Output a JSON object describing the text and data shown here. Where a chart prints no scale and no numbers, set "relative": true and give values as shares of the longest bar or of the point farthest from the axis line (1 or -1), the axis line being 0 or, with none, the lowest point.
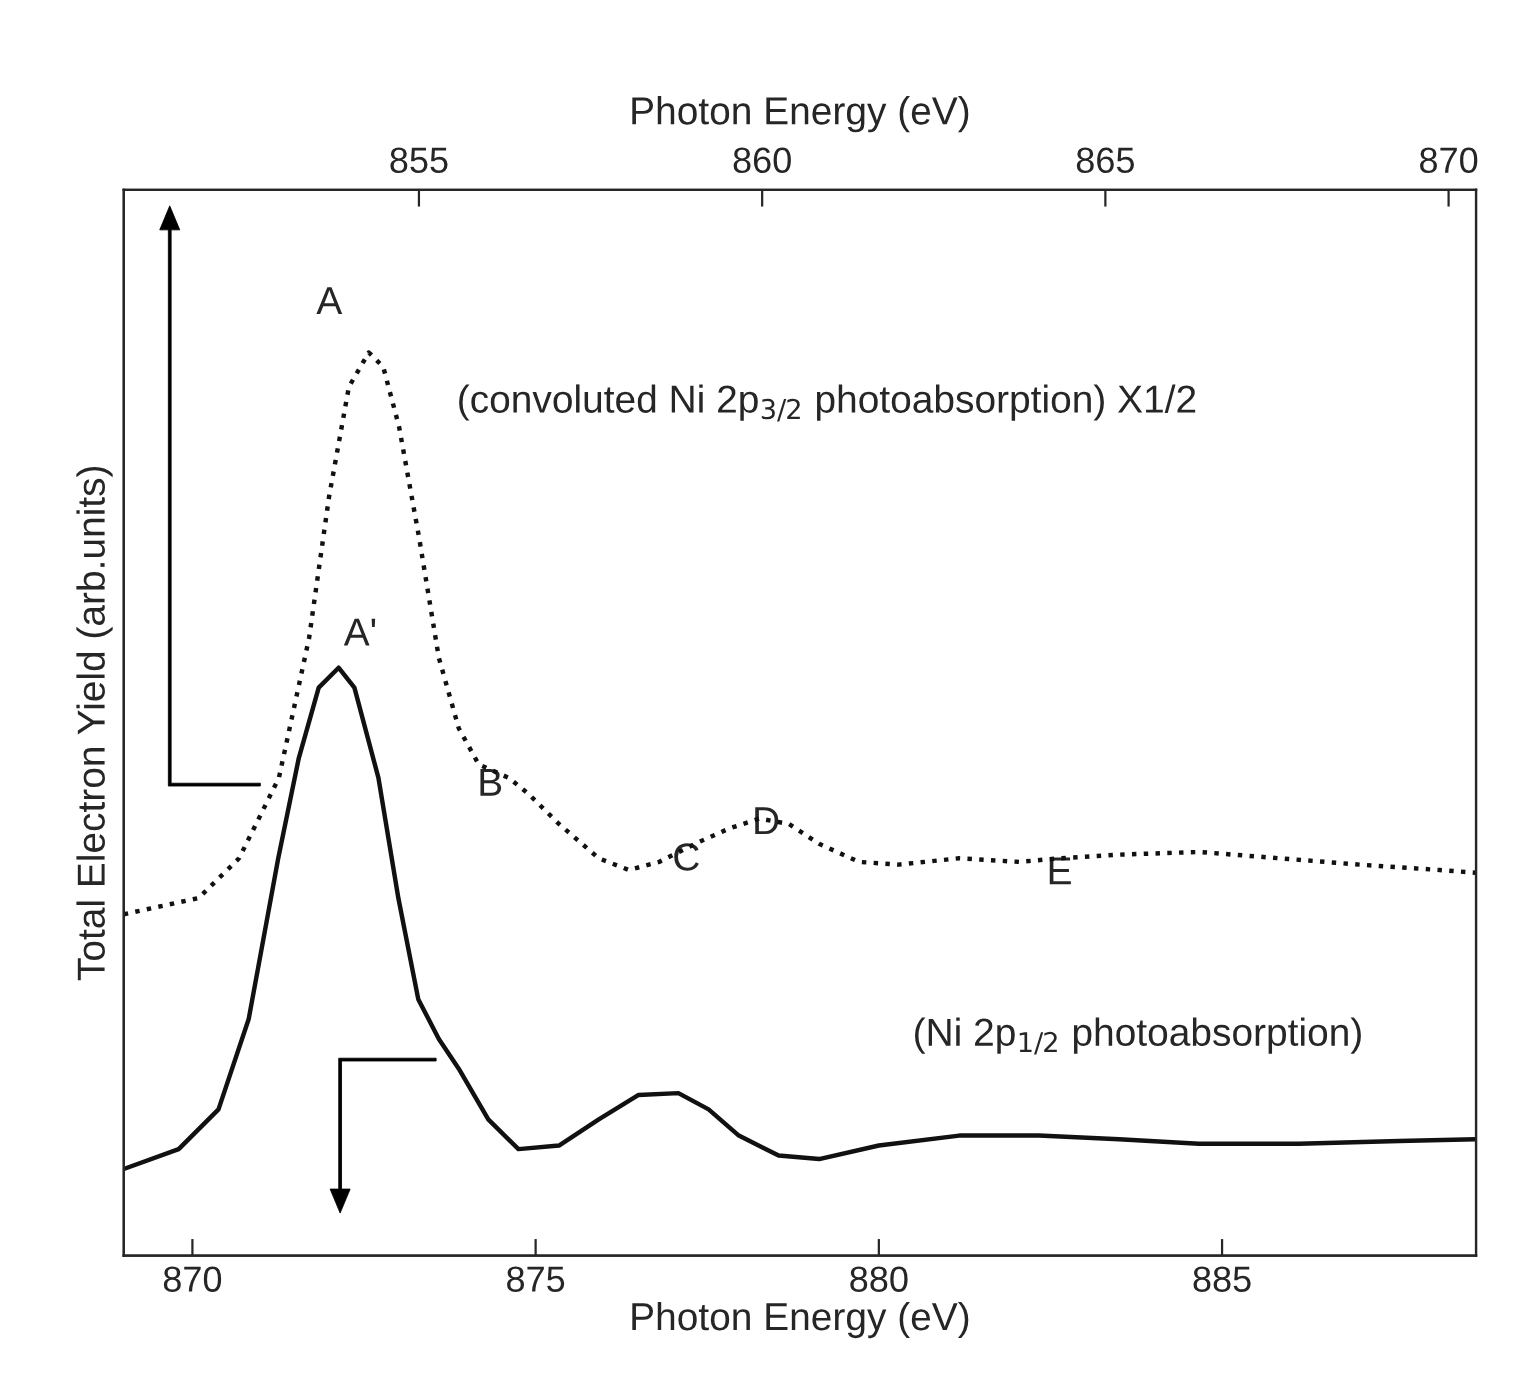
{
  "chart_data": {
    "type": "line",
    "relative": true,
    "xlabel": "Photon Energy (eV)",
    "x2label": "Photon Energy (eV)",
    "ylabel": "Total Electron Yield (arb.units)",
    "xlim": [
      869.0,
      888.7
    ],
    "xticks": [
      870,
      875,
      880,
      885
    ],
    "x2lim": [
      850.7,
      870.4
    ],
    "x2ticks": [
      855,
      860,
      865,
      870
    ],
    "grid": false,
    "legend": false,
    "series": [
      {
        "axis": "x2",
        "color": "#111111",
        "line_style": "dotted",
        "x": [
          850.7,
          851.79,
          852.38,
          852.96,
          853.4,
          853.69,
          853.98,
          854.27,
          854.48,
          854.71,
          855.0,
          855.29,
          855.58,
          855.87,
          856.31,
          856.6,
          857.04,
          857.62,
          858.06,
          858.5,
          859.08,
          859.52,
          859.96,
          860.39,
          860.83,
          861.41,
          861.99,
          862.87,
          863.75,
          864.33,
          865.2,
          866.37,
          867.54,
          868.7,
          869.87,
          870.39
        ],
        "values": [
          0.378,
          0.396,
          0.44,
          0.529,
          0.684,
          0.84,
          0.962,
          1.0,
          0.984,
          0.918,
          0.796,
          0.662,
          0.584,
          0.544,
          0.529,
          0.511,
          0.478,
          0.44,
          0.427,
          0.436,
          0.458,
          0.473,
          0.484,
          0.478,
          0.456,
          0.436,
          0.433,
          0.44,
          0.436,
          0.44,
          0.444,
          0.447,
          0.44,
          0.433,
          0.427,
          0.424
        ]
      },
      {
        "color": "#111111",
        "line_style": "solid",
        "x": [
          869.0,
          869.8,
          870.38,
          870.82,
          871.25,
          871.55,
          871.84,
          872.13,
          872.36,
          872.71,
          873.0,
          873.29,
          873.59,
          873.88,
          874.31,
          874.75,
          875.34,
          875.92,
          876.5,
          877.08,
          877.52,
          877.96,
          878.54,
          879.13,
          880.0,
          881.17,
          882.33,
          883.5,
          884.66,
          886.12,
          887.58,
          888.69
        ],
        "values": [
          0.096,
          0.118,
          0.162,
          0.262,
          0.44,
          0.551,
          0.629,
          0.651,
          0.629,
          0.529,
          0.396,
          0.284,
          0.24,
          0.207,
          0.151,
          0.118,
          0.122,
          0.151,
          0.178,
          0.18,
          0.162,
          0.133,
          0.111,
          0.107,
          0.122,
          0.133,
          0.133,
          0.129,
          0.124,
          0.124,
          0.127,
          0.129
        ]
      }
    ],
    "annotations": [
      "A",
      "A'",
      "B",
      "C",
      "D",
      "E",
      "(convoluted Ni 2p$_{3/2}$ photoabsorption) X1/2",
      "(Ni 2p$_{1/2}$ photoabsorption)"
    ]
  }
}
